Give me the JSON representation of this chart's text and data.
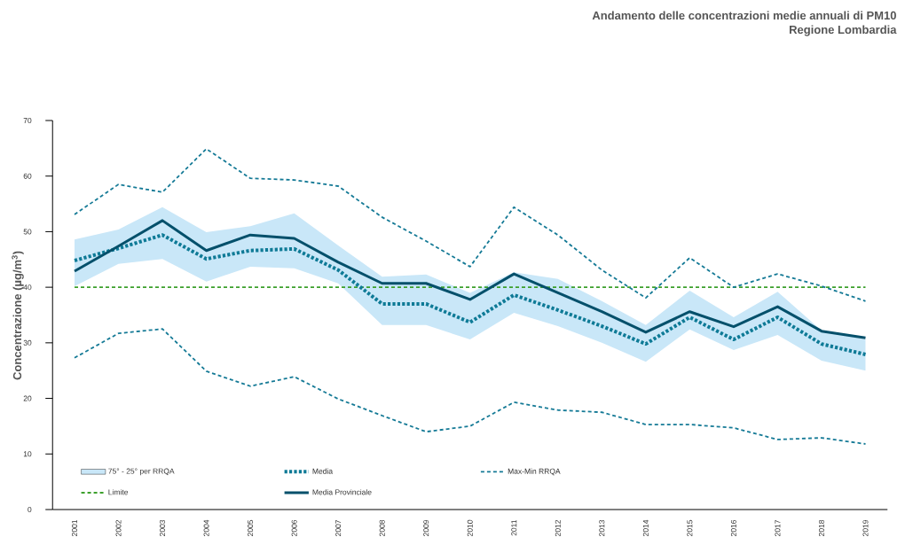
{
  "chart_data": {
    "type": "line",
    "title": "Andamento delle concentrazioni medie annuali di PM10",
    "subtitle": "Regione Lombardia",
    "ylabel": "Concentrazione (µg/m$^{3}$)",
    "categories": [
      "2001",
      "2002",
      "2003",
      "2004",
      "2005",
      "2006",
      "2007",
      "2008",
      "2009",
      "2010",
      "2011",
      "2012",
      "2013",
      "2014",
      "2015",
      "2016",
      "2017",
      "2018",
      "2019"
    ],
    "ylim": [
      0,
      70
    ],
    "yticks": [
      0,
      10,
      20,
      30,
      40,
      50,
      60,
      70
    ],
    "grid": false,
    "legend": "bottom",
    "marker": "none",
    "series": [
      {
        "name": "75° - 25° per RRQA",
        "type": "area",
        "color": "#c9e7f8",
        "values": [
          null,
          null,
          null,
          null,
          null,
          null,
          null,
          null,
          null,
          null,
          null,
          null,
          null,
          null,
          null,
          null,
          null,
          null,
          null
        ],
        "upper": [
          48.6,
          50.4,
          54.4,
          49.9,
          51.0,
          53.3,
          47.5,
          41.9,
          42.3,
          39.0,
          42.7,
          41.5,
          37.5,
          33.2,
          39.4,
          34.6,
          39.2,
          32.2,
          30.6
        ],
        "lower": [
          40.2,
          44.2,
          45.1,
          41.0,
          43.7,
          43.4,
          40.7,
          33.2,
          33.2,
          30.6,
          35.4,
          33.0,
          30.0,
          26.6,
          32.4,
          28.7,
          31.4,
          26.8,
          25.0
        ]
      },
      {
        "name": "Media",
        "line_style": "dotted",
        "color": "#0e7a96",
        "values": [
          44.8,
          47.0,
          49.4,
          45.1,
          46.6,
          46.9,
          43.1,
          37.0,
          37.0,
          33.7,
          38.6,
          35.9,
          33.0,
          29.8,
          34.6,
          30.6,
          34.6,
          29.8,
          27.9
        ]
      },
      {
        "name": "Max-Min RRQA",
        "line_style": "dashed",
        "color": "#157a96",
        "values": [
          53.1,
          58.5,
          57.1,
          64.9,
          59.6,
          59.3,
          58.2,
          52.6,
          48.3,
          43.7,
          54.4,
          49.4,
          43.1,
          38.1,
          45.3,
          40.0,
          42.4,
          40.2,
          37.5
        ]
      },
      {
        "line_style": "dashed",
        "color": "#157a96",
        "values": [
          27.3,
          31.7,
          32.5,
          24.9,
          22.2,
          23.9,
          19.9,
          16.9,
          14.0,
          15.0,
          19.3,
          17.9,
          17.5,
          15.3,
          15.3,
          14.7,
          12.6,
          12.9,
          11.8
        ]
      },
      {
        "name": "Media Provinciale",
        "line_style": "solid",
        "color": "#04506b",
        "values": [
          42.9,
          47.4,
          52.0,
          46.6,
          49.4,
          48.8,
          44.5,
          40.7,
          40.7,
          37.8,
          42.4,
          39.0,
          35.6,
          31.9,
          35.6,
          32.9,
          36.5,
          32.1,
          30.9
        ]
      }
    ],
    "ref_lines": [
      {
        "axis": "y",
        "value": 40,
        "label": "Limite",
        "color": "#3ca02c",
        "line_style": "dashed"
      }
    ]
  }
}
